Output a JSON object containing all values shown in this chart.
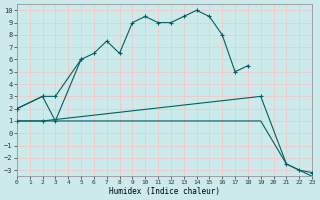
{
  "xlabel": "Humidex (Indice chaleur)",
  "xlim": [
    0,
    23
  ],
  "ylim": [
    -3.5,
    10.5
  ],
  "yticks": [
    10,
    9,
    8,
    7,
    6,
    5,
    4,
    3,
    2,
    1,
    0,
    -1,
    -2,
    -3
  ],
  "xticks": [
    0,
    1,
    2,
    3,
    4,
    5,
    6,
    7,
    8,
    9,
    10,
    11,
    12,
    13,
    14,
    15,
    16,
    17,
    18,
    19,
    20,
    21,
    22,
    23
  ],
  "bg_color": "#cceaea",
  "grid_color": "#f0c8c8",
  "line_color": "#006060",
  "curve1_x": [
    0,
    2,
    3,
    5,
    6,
    7,
    8,
    9,
    10,
    11,
    12,
    13,
    14,
    15,
    16,
    17,
    18
  ],
  "curve1_y": [
    2,
    3,
    3,
    6,
    6.5,
    7.5,
    6.5,
    9.0,
    9.5,
    9.0,
    9.0,
    9.5,
    10.0,
    9.5,
    8.0,
    5.0,
    5.5
  ],
  "curve2_x": [
    0,
    2,
    3,
    5
  ],
  "curve2_y": [
    2.0,
    3.0,
    1.0,
    6.0
  ],
  "curve3_x": [
    0,
    2,
    19,
    21,
    22,
    23
  ],
  "curve3_y": [
    1.0,
    1.0,
    3.0,
    -2.5,
    -3.0,
    -3.2
  ],
  "curve4_x": [
    0,
    2,
    19,
    21,
    22,
    23
  ],
  "curve4_y": [
    1.0,
    1.0,
    1.0,
    -2.5,
    -3.0,
    -3.5
  ]
}
